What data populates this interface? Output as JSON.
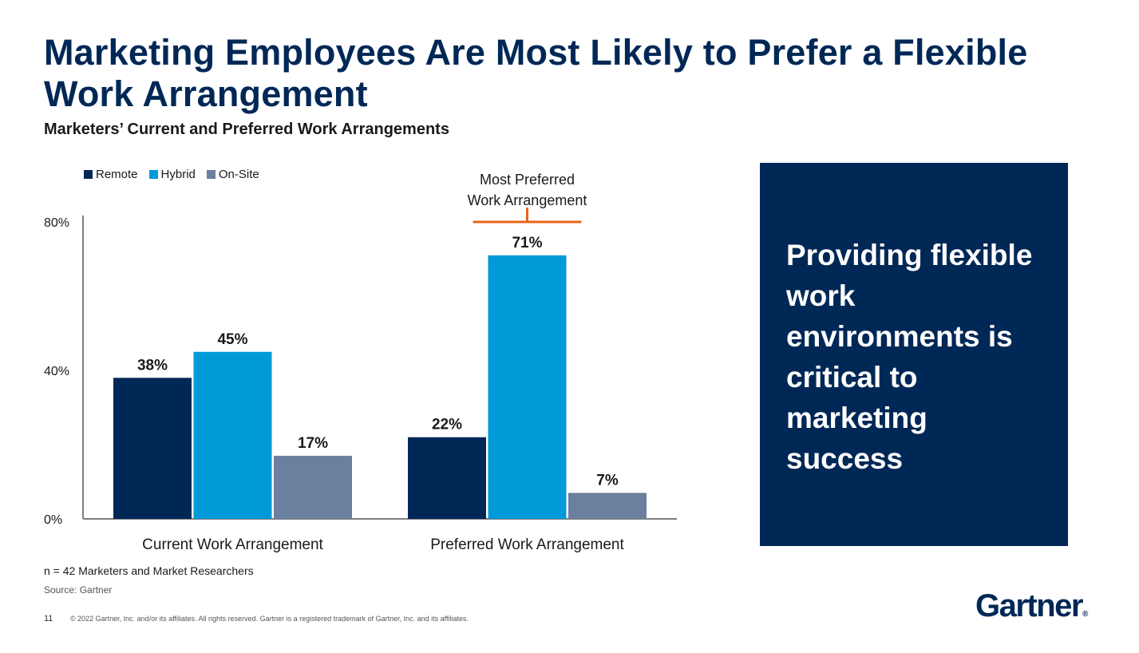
{
  "slide": {
    "title": "Marketing Employees Are Most Likely to Prefer a Flexible Work Arrangement",
    "subtitle": "Marketers’ Current and Preferred Work Arrangements",
    "callout_text": "Providing flexible work environments is critical to marketing success",
    "sample_note": "n = 42 Marketers and Market Researchers",
    "source": "Source: Gartner",
    "page_number": "11",
    "copyright": "© 2022 Gartner, Inc. and/or its affiliates. All rights reserved. Gartner is a registered trademark of Gartner, Inc. and its affiliates.",
    "logo_text": "Gartner",
    "logo_mark": "®"
  },
  "colors": {
    "remote": "#002856",
    "hybrid": "#009ad9",
    "onsite": "#6b7f9e",
    "bracket": "#e8641b",
    "axis": "#7f7f7f"
  },
  "chart_data": {
    "type": "bar",
    "title": "Marketers’ Current and Preferred Work Arrangements",
    "categories": [
      "Current Work Arrangement",
      "Preferred Work Arrangement"
    ],
    "series": [
      {
        "name": "Remote",
        "values": [
          38,
          22
        ],
        "labels": [
          "38%",
          "22%"
        ]
      },
      {
        "name": "Hybrid",
        "values": [
          45,
          71
        ],
        "labels": [
          "45%",
          "71%"
        ]
      },
      {
        "name": "On-Site",
        "values": [
          17,
          7
        ],
        "labels": [
          "17%",
          "7%"
        ]
      }
    ],
    "yticks": [
      0,
      40,
      80
    ],
    "ytick_labels": [
      "0%",
      "40%",
      "80%"
    ],
    "ylim": [
      0,
      80
    ],
    "xlabel": "",
    "ylabel": "",
    "legend_position": "top-left",
    "grid": false,
    "annotation": {
      "text_line1": "Most Preferred",
      "text_line2": "Work Arrangement",
      "target_category": "Preferred Work Arrangement",
      "target_series": "Hybrid"
    }
  }
}
